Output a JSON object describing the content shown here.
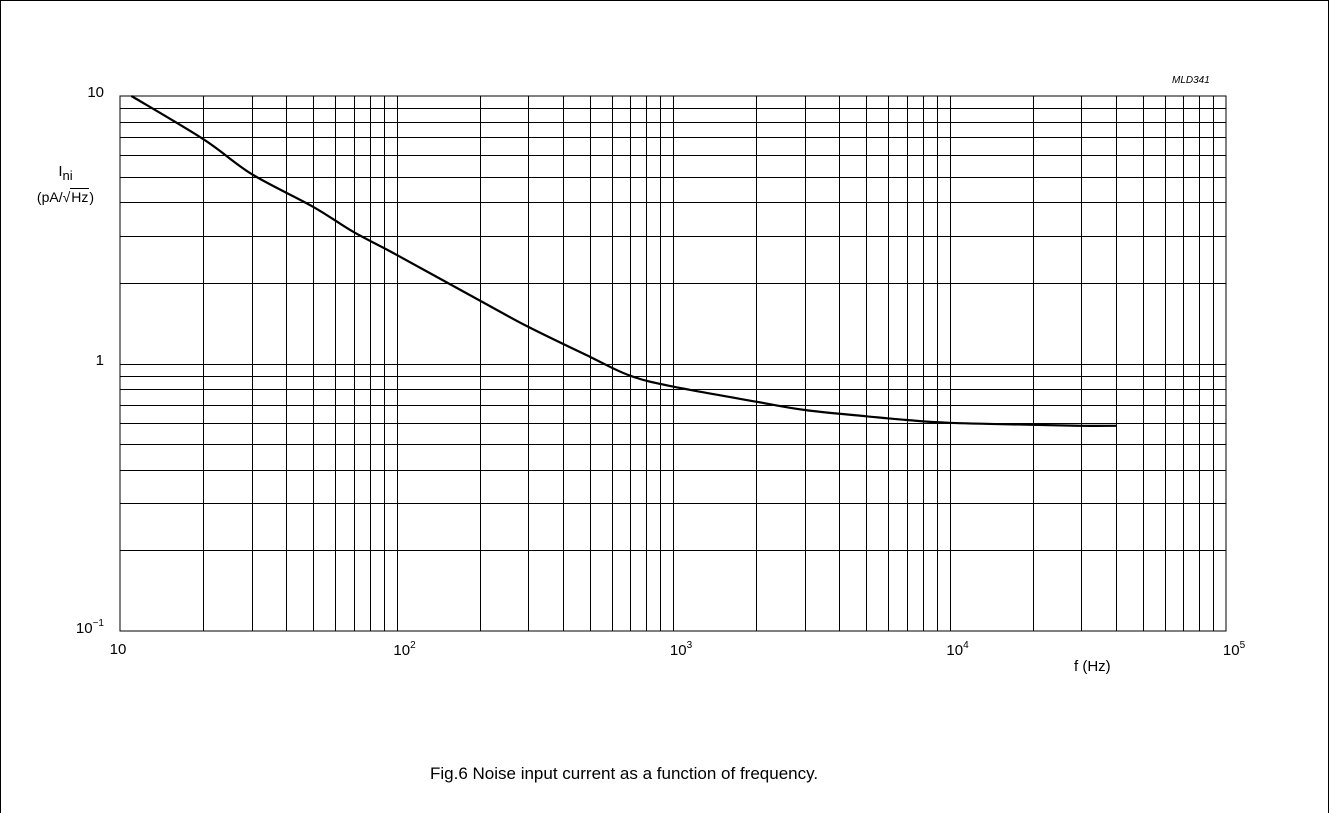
{
  "figure_code": "MLD341",
  "caption": "Fig.6  Noise input current as a function of frequency.",
  "chart_data": {
    "type": "line",
    "x_scale": "log",
    "y_scale": "log",
    "xlim": [
      10,
      100000
    ],
    "ylim": [
      0.1,
      10
    ],
    "ylabel": {
      "symbol": "I",
      "subscript": "ni",
      "unit_prefix": "(pA/",
      "unit_radical": "√",
      "unit_radicand": "Hz",
      "unit_suffix": ")"
    },
    "xlabel": "f  (Hz)",
    "x_ticks": [
      {
        "value": 10,
        "base": "10",
        "exp": ""
      },
      {
        "value": 100,
        "base": "10",
        "exp": "2"
      },
      {
        "value": 1000,
        "base": "10",
        "exp": "3"
      },
      {
        "value": 10000,
        "base": "10",
        "exp": "4"
      },
      {
        "value": 100000,
        "base": "10",
        "exp": "5"
      }
    ],
    "y_ticks": [
      {
        "value": 0.1,
        "base": "10",
        "exp": "−1"
      },
      {
        "value": 1,
        "base": "1",
        "exp": ""
      },
      {
        "value": 10,
        "base": "10",
        "exp": ""
      }
    ],
    "grid": true,
    "series": [
      {
        "x": [
          11,
          20,
          30,
          50,
          70,
          100,
          200,
          300,
          500,
          700,
          1000,
          2000,
          3000,
          5000,
          7000,
          10000,
          20000,
          30000,
          40000
        ],
        "y": [
          10,
          6.9,
          5.1,
          3.85,
          3.1,
          2.55,
          1.72,
          1.37,
          1.06,
          0.9,
          0.82,
          0.72,
          0.67,
          0.635,
          0.615,
          0.6,
          0.59,
          0.585,
          0.585
        ]
      }
    ]
  }
}
